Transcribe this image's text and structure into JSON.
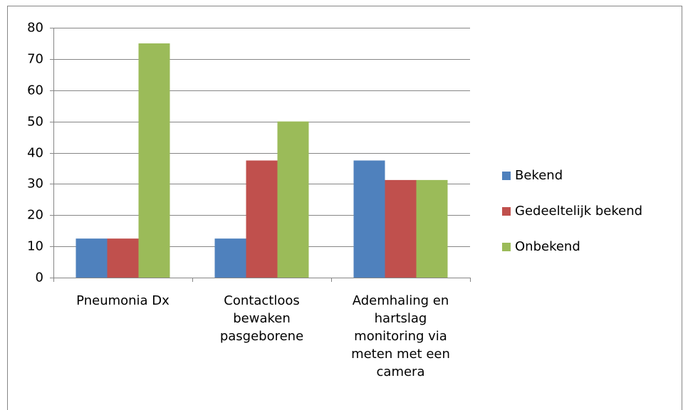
{
  "chart_data": {
    "type": "bar",
    "categories": [
      "Pneumonia Dx",
      "Contactloos bewaken pasgeborene",
      "Ademhaling en hartslag monitoring via meten met een camera"
    ],
    "series": [
      {
        "name": "Bekend",
        "color": "#4f81bd",
        "values": [
          12.5,
          12.5,
          37.5
        ]
      },
      {
        "name": "Gedeeltelijk bekend",
        "color": "#c0504d",
        "values": [
          12.5,
          37.5,
          31.25
        ]
      },
      {
        "name": "Onbekend",
        "color": "#9bbb59",
        "values": [
          75,
          50,
          31.25
        ]
      }
    ],
    "ylim": [
      0,
      80
    ],
    "yticks": [
      0,
      10,
      20,
      30,
      40,
      50,
      60,
      70,
      80
    ],
    "grid": true,
    "legend": "right"
  }
}
